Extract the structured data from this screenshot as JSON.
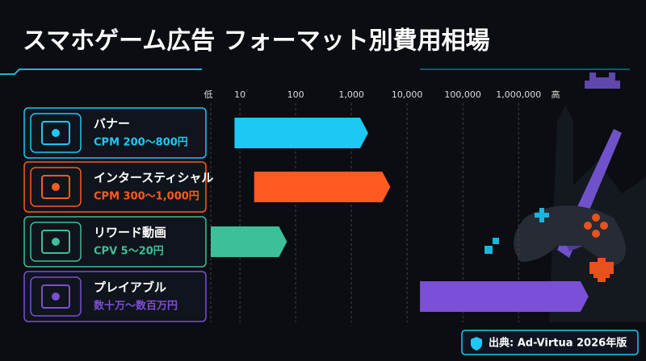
{
  "chart_data": {
    "type": "range-bar",
    "title": "スマホゲーム広告 フォーマット別費用相場",
    "axis_low_label": "低",
    "axis_high_label": "高",
    "log_scale": true,
    "grid": true,
    "xlim": [
      3,
      20000000
    ],
    "xticks": [
      10,
      100,
      {
        "value": 1000,
        "label": "1,000"
      },
      {
        "value": 10000,
        "label": "10,000"
      },
      {
        "value": 100000,
        "label": "100,000"
      },
      {
        "value": 1000000,
        "label": "1,000,000"
      }
    ],
    "series": [
      {
        "name": "バナー",
        "detail": "CPM 200〜800円",
        "color": "#1ec8f5",
        "values": [
          8,
          2000
        ]
      },
      {
        "name": "インタースティシャル",
        "detail": "CPM 300〜1,000円",
        "color": "#ff5a1f",
        "values": [
          18,
          5000
        ]
      },
      {
        "name": "リワード動画",
        "detail": "CPV 5〜20円",
        "color": "#3dbf9a",
        "values": [
          3,
          70
        ]
      },
      {
        "name": "プレイアブル",
        "detail": "数十万〜数百万円",
        "color": "#7b4fd6",
        "values": [
          17000,
          18000000
        ]
      }
    ],
    "source": "出典: Ad-Virtua 2026年版"
  }
}
